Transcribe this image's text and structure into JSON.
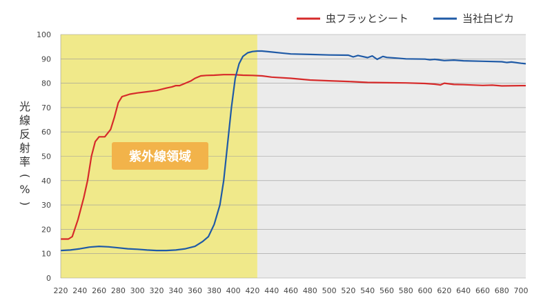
{
  "chart_data": {
    "type": "line",
    "xlabel": "",
    "ylabel": "光線反射率(%)",
    "xlim": [
      220,
      705
    ],
    "ylim": [
      0,
      100
    ],
    "x_ticks": [
      220,
      240,
      260,
      280,
      300,
      320,
      340,
      360,
      380,
      400,
      420,
      440,
      460,
      480,
      500,
      520,
      540,
      560,
      580,
      600,
      620,
      640,
      660,
      680,
      700
    ],
    "y_ticks": [
      0,
      10,
      20,
      30,
      40,
      50,
      60,
      70,
      80,
      90,
      100
    ],
    "grid": "horizontal",
    "legend_placement": "top-right",
    "highlight_region": {
      "x_from": 220,
      "x_to": 425,
      "label": "紫外線領域",
      "color": "#f0e98a",
      "label_color": "#f2b34a"
    },
    "plot_background_right": "#ebebeb",
    "series": [
      {
        "name": "虫フラッとシート",
        "color": "#d62a2a",
        "x": [
          220,
          228,
          232,
          238,
          244,
          248,
          252,
          256,
          260,
          266,
          272,
          276,
          280,
          284,
          288,
          292,
          300,
          310,
          320,
          330,
          336,
          340,
          344,
          350,
          356,
          360,
          366,
          372,
          380,
          390,
          400,
          410,
          420,
          430,
          440,
          460,
          480,
          500,
          520,
          540,
          560,
          580,
          600,
          610,
          616,
          620,
          630,
          640,
          660,
          670,
          680,
          700,
          705
        ],
        "y": [
          16,
          16,
          17,
          24,
          33,
          40,
          50,
          56,
          58,
          58,
          61,
          66,
          72,
          74.5,
          75,
          75.5,
          76,
          76.5,
          77,
          78,
          78.5,
          79,
          79,
          80,
          81,
          82,
          83,
          83.2,
          83.3,
          83.5,
          83.5,
          83.3,
          83.2,
          83,
          82.5,
          82,
          81.3,
          81,
          80.7,
          80.3,
          80.2,
          80.1,
          79.9,
          79.6,
          79.3,
          80,
          79.5,
          79.4,
          79.1,
          79.2,
          78.9,
          79,
          79
        ]
      },
      {
        "name": "当社白ピカ",
        "color": "#1f5aa6",
        "x": [
          220,
          230,
          240,
          250,
          260,
          270,
          280,
          290,
          300,
          310,
          320,
          330,
          340,
          350,
          360,
          368,
          374,
          380,
          386,
          390,
          394,
          398,
          402,
          406,
          410,
          415,
          420,
          425,
          430,
          440,
          450,
          460,
          480,
          500,
          520,
          525,
          530,
          540,
          545,
          550,
          556,
          560,
          570,
          580,
          600,
          605,
          610,
          620,
          630,
          640,
          660,
          680,
          685,
          690,
          700,
          705
        ],
        "y": [
          11.3,
          11.5,
          12,
          12.7,
          13,
          12.8,
          12.4,
          12,
          11.8,
          11.5,
          11.3,
          11.3,
          11.5,
          12,
          13,
          15,
          17,
          22,
          30,
          40,
          55,
          70,
          82,
          88,
          91,
          92.5,
          93,
          93.2,
          93.2,
          92.8,
          92.4,
          92,
          91.8,
          91.6,
          91.5,
          90.8,
          91.4,
          90.5,
          91.2,
          89.8,
          91,
          90.6,
          90.3,
          90,
          89.9,
          89.6,
          89.8,
          89.3,
          89.5,
          89.2,
          89,
          88.8,
          88.5,
          88.7,
          88.2,
          88
        ]
      }
    ]
  }
}
